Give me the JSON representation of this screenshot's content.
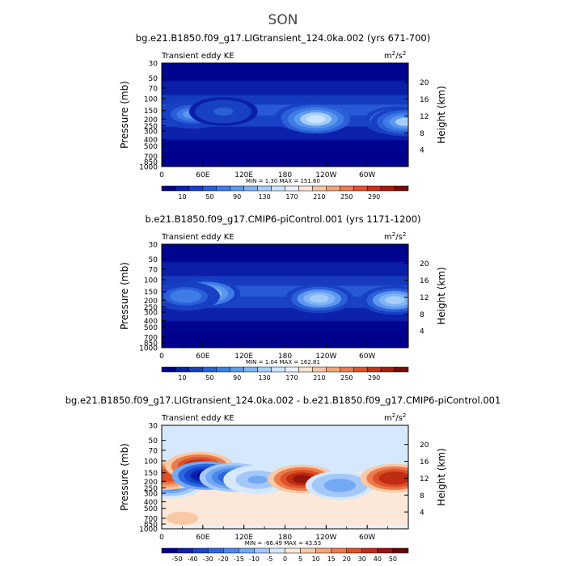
{
  "page_title": "SON",
  "chart_data": [
    {
      "type": "heatmap",
      "title": "bg.e21.B1850.f09_g17.LIGtransient_124.0ka.002 (yrs 671-700)",
      "left_string": "Transient eddy KE",
      "units_base": "m",
      "units_exp_a": "2",
      "units_mid": "/s",
      "units_exp_b": "2",
      "ylabel": "Pressure  (mb)",
      "ylabel_right": "Height  (km)",
      "x_ticks": [
        "0",
        "60E",
        "120E",
        "180",
        "120W",
        "60W"
      ],
      "x_values": [
        0,
        60,
        120,
        180,
        240,
        300
      ],
      "xlim": [
        0,
        360
      ],
      "y_ticks": [
        "30",
        "50",
        "70",
        "100",
        "150",
        "200",
        "250",
        "300",
        "400",
        "500",
        "700",
        "850",
        "1000"
      ],
      "y_values": [
        30,
        50,
        70,
        100,
        150,
        200,
        250,
        300,
        400,
        500,
        700,
        850,
        1000
      ],
      "ylim": [
        30,
        1000
      ],
      "y_scale": "log",
      "right_ticks": [
        "4",
        "8",
        "12",
        "16",
        "20"
      ],
      "right_values": [
        4,
        8,
        12,
        16,
        20
      ],
      "stats": "MIN =     1.30   MAX =  151.60",
      "min": 1.3,
      "max": 151.6,
      "colorbar_labels": [
        "10",
        "50",
        "90",
        "130",
        "170",
        "210",
        "250",
        "290"
      ],
      "colorbar_colors": [
        "#00008b",
        "#0a1fa8",
        "#1840c4",
        "#2a5fd8",
        "#3d7ce6",
        "#5b98ee",
        "#7fb3f5",
        "#a6cdfa",
        "#cbe3fc",
        "#e6f1fd",
        "#fbe4d6",
        "#f8c5a8",
        "#f3a27a",
        "#ec7b4f",
        "#e0532d",
        "#c8321a",
        "#a51c0e",
        "#7a0b05"
      ],
      "features": [
        {
          "lon": 45,
          "p": 170,
          "v": 85
        },
        {
          "lon": 90,
          "p": 155,
          "v": 55
        },
        {
          "lon": 215,
          "p": 190,
          "v": 125
        },
        {
          "lon": 225,
          "p": 200,
          "v": 145
        },
        {
          "lon": 345,
          "p": 210,
          "v": 135
        },
        {
          "lon": 355,
          "p": 220,
          "v": 120
        }
      ],
      "background_value": 28
    },
    {
      "type": "heatmap",
      "title": "b.e21.B1850.f09_g17.CMIP6-piControl.001 (yrs 1171-1200)",
      "left_string": "Transient eddy KE",
      "units_base": "m",
      "units_exp_a": "2",
      "units_mid": "/s",
      "units_exp_b": "2",
      "ylabel": "Pressure  (mb)",
      "ylabel_right": "Height  (km)",
      "x_ticks": [
        "0",
        "60E",
        "120E",
        "180",
        "120W",
        "60W"
      ],
      "x_values": [
        0,
        60,
        120,
        180,
        240,
        300
      ],
      "xlim": [
        0,
        360
      ],
      "y_ticks": [
        "30",
        "50",
        "70",
        "100",
        "150",
        "200",
        "250",
        "300",
        "400",
        "500",
        "700",
        "850",
        "1000"
      ],
      "y_values": [
        30,
        50,
        70,
        100,
        150,
        200,
        250,
        300,
        400,
        500,
        700,
        850,
        1000
      ],
      "ylim": [
        30,
        1000
      ],
      "y_scale": "log",
      "right_ticks": [
        "4",
        "8",
        "12",
        "16",
        "20"
      ],
      "right_values": [
        4,
        8,
        12,
        16,
        20
      ],
      "stats": "MIN =     1.04   MAX =  162.81",
      "min": 1.04,
      "max": 162.81,
      "colorbar_labels": [
        "10",
        "50",
        "90",
        "130",
        "170",
        "210",
        "250",
        "290"
      ],
      "colorbar_colors": [
        "#00008b",
        "#0a1fa8",
        "#1840c4",
        "#2a5fd8",
        "#3d7ce6",
        "#5b98ee",
        "#7fb3f5",
        "#a6cdfa",
        "#cbe3fc",
        "#e6f1fd",
        "#fbe4d6",
        "#f8c5a8",
        "#f3a27a",
        "#ec7b4f",
        "#e0532d",
        "#c8321a",
        "#a51c0e",
        "#7a0b05"
      ],
      "features": [
        {
          "lon": 65,
          "p": 160,
          "v": 135
        },
        {
          "lon": 35,
          "p": 175,
          "v": 80
        },
        {
          "lon": 230,
          "p": 190,
          "v": 130
        },
        {
          "lon": 340,
          "p": 200,
          "v": 125
        }
      ],
      "background_value": 26
    },
    {
      "type": "heatmap",
      "title": "bg.e21.B1850.f09_g17.LIGtransient_124.0ka.002 - b.e21.B1850.f09_g17.CMIP6-piControl.001",
      "left_string": "Transient eddy KE",
      "units_base": "m",
      "units_exp_a": "2",
      "units_mid": "/s",
      "units_exp_b": "2",
      "ylabel": "Pressure  (mb)",
      "ylabel_right": "Height  (km)",
      "x_ticks": [
        "0",
        "60E",
        "120E",
        "180",
        "120W",
        "60W"
      ],
      "x_values": [
        0,
        60,
        120,
        180,
        240,
        300
      ],
      "xlim": [
        0,
        360
      ],
      "y_ticks": [
        "30",
        "50",
        "70",
        "100",
        "150",
        "200",
        "250",
        "300",
        "400",
        "500",
        "700",
        "850",
        "1000"
      ],
      "y_values": [
        30,
        50,
        70,
        100,
        150,
        200,
        250,
        300,
        400,
        500,
        700,
        850,
        1000
      ],
      "ylim": [
        30,
        1000
      ],
      "y_scale": "log",
      "right_ticks": [
        "4",
        "8",
        "12",
        "16",
        "20"
      ],
      "right_values": [
        4,
        8,
        12,
        16,
        20
      ],
      "stats": "MIN =   -66.49   MAX =   43.53",
      "min": -66.49,
      "max": 43.53,
      "colorbar_labels": [
        "-50",
        "-40",
        "-30",
        "-20",
        "-15",
        "-10",
        "-5",
        "0",
        "5",
        "10",
        "15",
        "20",
        "30",
        "40",
        "50"
      ],
      "colorbar_colors": [
        "#00008b",
        "#0a22b0",
        "#1745cc",
        "#2b66df",
        "#4a88ec",
        "#73a8f4",
        "#a3c8fa",
        "#d6e8fd",
        "#fbe8d8",
        "#f8c9a6",
        "#f3a478",
        "#ec7b4c",
        "#dc5128",
        "#bf2c14",
        "#95150a",
        "#6a0603"
      ],
      "features": [
        {
          "lon": 12,
          "p": 220,
          "v": -25
        },
        {
          "lon": 5,
          "p": 165,
          "v": 25
        },
        {
          "lon": 55,
          "p": 120,
          "v": 40
        },
        {
          "lon": 65,
          "p": 165,
          "v": -60
        },
        {
          "lon": 105,
          "p": 175,
          "v": -30
        },
        {
          "lon": 140,
          "p": 190,
          "v": -12
        },
        {
          "lon": 205,
          "p": 185,
          "v": 40
        },
        {
          "lon": 260,
          "p": 230,
          "v": -15
        },
        {
          "lon": 340,
          "p": 180,
          "v": 38
        },
        {
          "lon": 30,
          "p": 700,
          "v": 8
        }
      ],
      "background_value": 0
    }
  ]
}
